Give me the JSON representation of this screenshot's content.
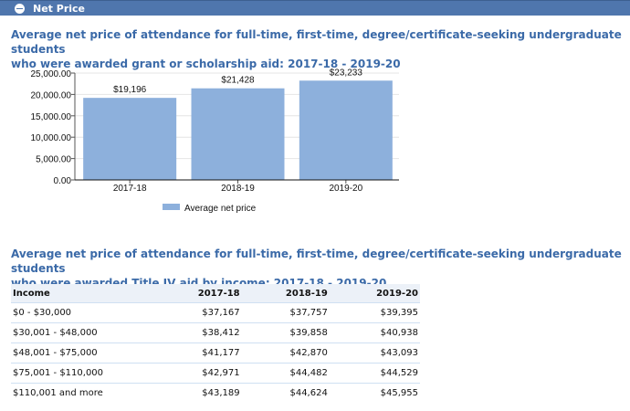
{
  "section": {
    "title": "Net Price"
  },
  "heading1": {
    "line1": "Average net price of attendance for full-time, first-time, degree/certificate-seeking undergraduate students",
    "line2": "who were awarded grant or scholarship aid: 2017-18 - 2019-20"
  },
  "chart_data": {
    "type": "bar",
    "categories": [
      "2017-18",
      "2018-19",
      "2019-20"
    ],
    "series": [
      {
        "name": "Average net price",
        "values": [
          19196,
          21428,
          23233
        ],
        "color": "#8db0dc"
      }
    ],
    "data_labels": [
      "$19,196",
      "$21,428",
      "$23,233"
    ],
    "yticks": [
      "0.00",
      "5,000.00",
      "10,000.00",
      "15,000.00",
      "20,000.00",
      "25,000.00"
    ],
    "ylim": [
      0,
      25000
    ],
    "legend_position": "bottom"
  },
  "heading2": {
    "line1": "Average net price of attendance for full-time, first-time, degree/certificate-seeking undergraduate students",
    "line2": "who were awarded Title IV aid by income: 2017-18 - 2019-20"
  },
  "table": {
    "headers": [
      "Income",
      "2017-18",
      "2018-19",
      "2019-20"
    ],
    "rows": [
      [
        "$0 - $30,000",
        "$37,167",
        "$37,757",
        "$39,395"
      ],
      [
        "$30,001 - $48,000",
        "$38,412",
        "$39,858",
        "$40,938"
      ],
      [
        "$48,001 - $75,000",
        "$41,177",
        "$42,870",
        "$43,093"
      ],
      [
        "$75,001 - $110,000",
        "$42,971",
        "$44,482",
        "$44,529"
      ],
      [
        "$110,001 and more",
        "$43,189",
        "$44,624",
        "$45,955"
      ]
    ]
  }
}
